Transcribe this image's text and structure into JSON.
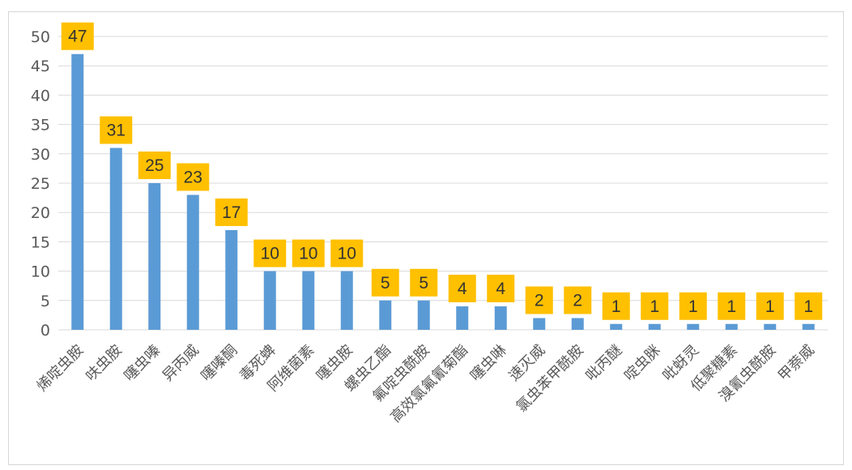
{
  "chart_data": {
    "type": "bar",
    "title": "",
    "xlabel": "",
    "ylabel": "",
    "ylim": [
      0,
      50
    ],
    "yticks": [
      0,
      5,
      10,
      15,
      20,
      25,
      30,
      35,
      40,
      45,
      50
    ],
    "grid": true,
    "legend": "none",
    "categories": [
      "烯啶虫胺",
      "呋虫胺",
      "噻虫嗪",
      "异丙威",
      "噻嗪酮",
      "毒死蜱",
      "阿维菌素",
      "噻虫胺",
      "螺虫乙酯",
      "氟啶虫酰胺",
      "高效氯氟氰菊酯",
      "噻虫啉",
      "速灭威",
      "氯虫苯甲酰胺",
      "吡丙醚",
      "啶虫脒",
      "吡蚜灵",
      "低聚糖素",
      "溴氰虫酰胺",
      "甲萘威"
    ],
    "series": [
      {
        "values": [
          47,
          31,
          25,
          23,
          17,
          10,
          10,
          10,
          5,
          5,
          4,
          4,
          2,
          2,
          1,
          1,
          1,
          1,
          1,
          1
        ]
      }
    ],
    "colors": {
      "bar": "#5b9bd5",
      "data_label_bg": "#ffc000",
      "grid": "#d9d9d9"
    }
  }
}
